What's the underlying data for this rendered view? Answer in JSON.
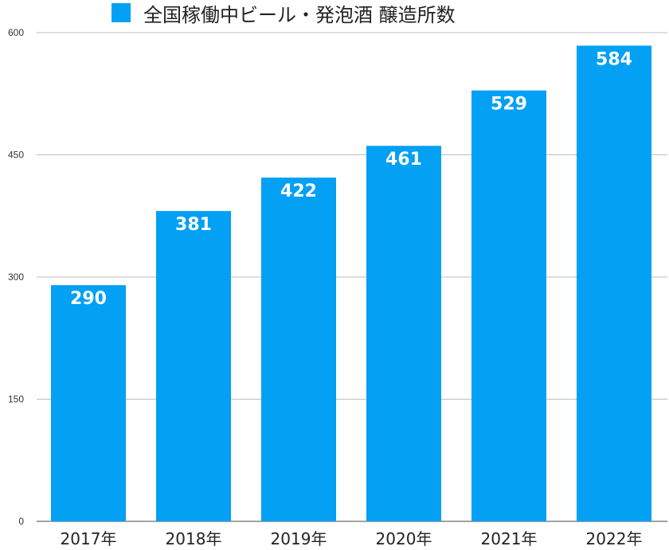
{
  "chart_data": {
    "type": "bar",
    "categories": [
      "2017年",
      "2018年",
      "2019年",
      "2020年",
      "2021年",
      "2022年"
    ],
    "series": [
      {
        "name": "全国稼働中ビール・発泡酒 醸造所数",
        "values": [
          290,
          381,
          422,
          461,
          529,
          584
        ],
        "color": "#03a0f4"
      }
    ],
    "ylim": [
      0,
      600
    ],
    "yticks": [
      0,
      150,
      300,
      450,
      600
    ],
    "grid": true,
    "legend": "top-center",
    "data_labels": true
  }
}
